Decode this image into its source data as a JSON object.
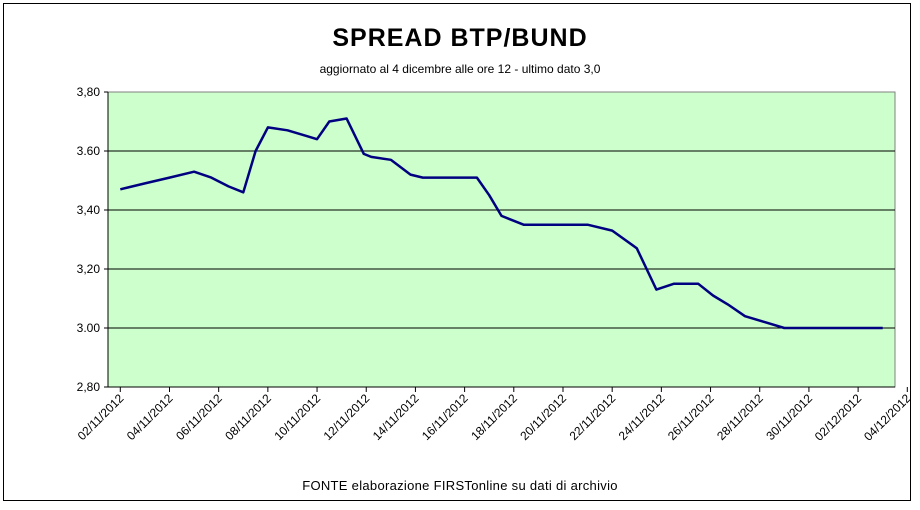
{
  "chart_data": {
    "type": "line",
    "title": "SPREAD  BTP/BUND",
    "subtitle": "aggiornato al 4 dicembre alle ore 12 - ultimo dato 3,0",
    "source": "FONTE elaborazione FIRSTonline su dati di archivio",
    "xlabel": "",
    "ylabel": "",
    "ylim": [
      2.8,
      3.8
    ],
    "y_ticks": [
      "2,80",
      "3.00",
      "3,20",
      "3,40",
      "3.60",
      "3,80"
    ],
    "x_tick_labels": [
      "02/11/2012",
      "04/11/2012",
      "06/11/2012",
      "08/11/2012",
      "10/11/2012",
      "12/11/2012",
      "14/11/2012",
      "16/11/2012",
      "18/11/2012",
      "20/11/2012",
      "22/11/2012",
      "24/11/2012",
      "26/11/2012",
      "28/11/2012",
      "30/11/2012",
      "02/12/2012",
      "04/12/2012"
    ],
    "grid": true,
    "colors": {
      "plot_background": "#ccffcc",
      "line": "#000080",
      "gridline": "#000000"
    },
    "series": [
      {
        "x": [
          0,
          1,
          2,
          3,
          3.7,
          4.4,
          5,
          5.5,
          6,
          6.8,
          7.6,
          8,
          8.5,
          9.2,
          9.9,
          10.2,
          11,
          11.8,
          12.3,
          12.8,
          13.2,
          14,
          14.5,
          15,
          15.5,
          16.4,
          17,
          17.8,
          18.5,
          19,
          20,
          21,
          21.8,
          22.5,
          23.5,
          24.1,
          24.7,
          25.4,
          26.2,
          27,
          28,
          28.7,
          29.4,
          30,
          30.6,
          31
        ],
        "y": [
          3.47,
          3.49,
          3.51,
          3.53,
          3.51,
          3.48,
          3.46,
          3.6,
          3.68,
          3.67,
          3.65,
          3.64,
          3.7,
          3.71,
          3.59,
          3.58,
          3.57,
          3.52,
          3.51,
          3.51,
          3.51,
          3.51,
          3.51,
          3.45,
          3.38,
          3.35,
          3.35,
          3.35,
          3.35,
          3.35,
          3.33,
          3.27,
          3.13,
          3.15,
          3.15,
          3.11,
          3.08,
          3.04,
          3.02,
          3.0,
          3.0,
          3.0,
          3.0,
          3.0,
          3.0,
          3.0
        ]
      }
    ]
  }
}
